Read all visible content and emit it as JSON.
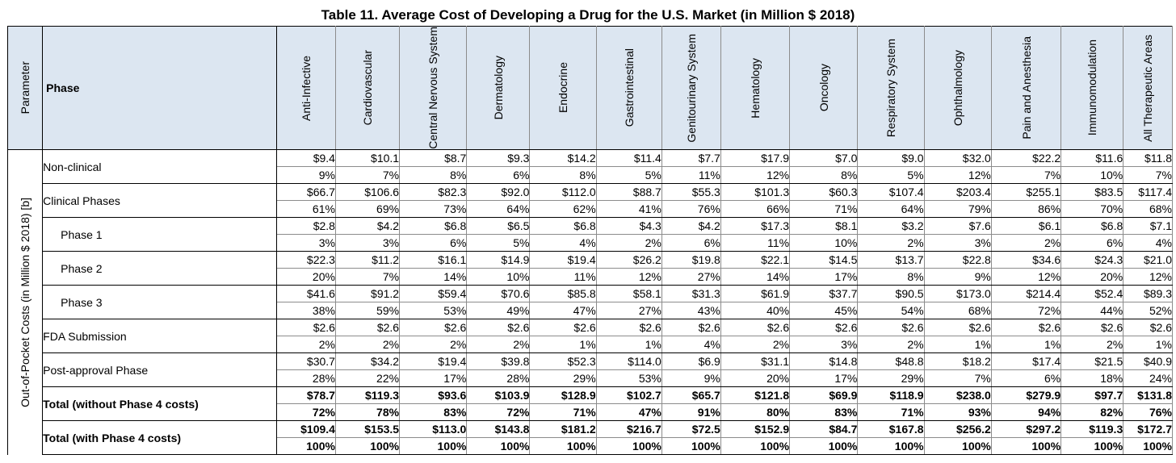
{
  "title": "Table 11.  Average Cost of Developing a Drug for the U.S. Market (in Million $ 2018)",
  "header": {
    "parameter": "Parameter",
    "phase": "Phase",
    "columns": [
      "Anti-Infective",
      "Cardiovascular",
      "Central Nervous System",
      "Dermatology",
      "Endocrine",
      "Gastrointestinal",
      "Genitourinary System",
      "Hematology",
      "Oncology",
      "Respiratory System",
      "Ophthalmology",
      "Pain and Anesthesia",
      "Immunomodulation",
      "All Therapeutic Areas"
    ]
  },
  "group_label": "Out-of-Pocket Costs (in Million $ 2018) [b]",
  "rows": [
    {
      "phase": "Non-clinical",
      "costs": [
        "$9.4",
        "$10.1",
        "$8.7",
        "$9.3",
        "$14.2",
        "$11.4",
        "$7.7",
        "$17.9",
        "$7.0",
        "$9.0",
        "$32.0",
        "$22.2",
        "$11.6",
        "$11.8"
      ],
      "pcts": [
        "9%",
        "7%",
        "8%",
        "6%",
        "8%",
        "5%",
        "11%",
        "12%",
        "8%",
        "5%",
        "12%",
        "7%",
        "10%",
        "7%"
      ]
    },
    {
      "phase": "Clinical Phases",
      "costs": [
        "$66.7",
        "$106.6",
        "$82.3",
        "$92.0",
        "$112.0",
        "$88.7",
        "$55.3",
        "$101.3",
        "$60.3",
        "$107.4",
        "$203.4",
        "$255.1",
        "$83.5",
        "$117.4"
      ],
      "pcts": [
        "61%",
        "69%",
        "73%",
        "64%",
        "62%",
        "41%",
        "76%",
        "66%",
        "71%",
        "64%",
        "79%",
        "86%",
        "70%",
        "68%"
      ]
    },
    {
      "phase": "Phase 1",
      "costs": [
        "$2.8",
        "$4.2",
        "$6.8",
        "$6.5",
        "$6.8",
        "$4.3",
        "$4.2",
        "$17.3",
        "$8.1",
        "$3.2",
        "$7.6",
        "$6.1",
        "$6.8",
        "$7.1"
      ],
      "pcts": [
        "3%",
        "3%",
        "6%",
        "5%",
        "4%",
        "2%",
        "6%",
        "11%",
        "10%",
        "2%",
        "3%",
        "2%",
        "6%",
        "4%"
      ]
    },
    {
      "phase": "Phase 2",
      "costs": [
        "$22.3",
        "$11.2",
        "$16.1",
        "$14.9",
        "$19.4",
        "$26.2",
        "$19.8",
        "$22.1",
        "$14.5",
        "$13.7",
        "$22.8",
        "$34.6",
        "$24.3",
        "$21.0"
      ],
      "pcts": [
        "20%",
        "7%",
        "14%",
        "10%",
        "11%",
        "12%",
        "27%",
        "14%",
        "17%",
        "8%",
        "9%",
        "12%",
        "20%",
        "12%"
      ]
    },
    {
      "phase": "Phase 3",
      "costs": [
        "$41.6",
        "$91.2",
        "$59.4",
        "$70.6",
        "$85.8",
        "$58.1",
        "$31.3",
        "$61.9",
        "$37.7",
        "$90.5",
        "$173.0",
        "$214.4",
        "$52.4",
        "$89.3"
      ],
      "pcts": [
        "38%",
        "59%",
        "53%",
        "49%",
        "47%",
        "27%",
        "43%",
        "40%",
        "45%",
        "54%",
        "68%",
        "72%",
        "44%",
        "52%"
      ]
    },
    {
      "phase": "FDA Submission",
      "costs": [
        "$2.6",
        "$2.6",
        "$2.6",
        "$2.6",
        "$2.6",
        "$2.6",
        "$2.6",
        "$2.6",
        "$2.6",
        "$2.6",
        "$2.6",
        "$2.6",
        "$2.6",
        "$2.6"
      ],
      "pcts": [
        "2%",
        "2%",
        "2%",
        "2%",
        "1%",
        "1%",
        "4%",
        "2%",
        "3%",
        "2%",
        "1%",
        "1%",
        "2%",
        "1%"
      ]
    },
    {
      "phase": "Post-approval Phase",
      "costs": [
        "$30.7",
        "$34.2",
        "$19.4",
        "$39.8",
        "$52.3",
        "$114.0",
        "$6.9",
        "$31.1",
        "$14.8",
        "$48.8",
        "$18.2",
        "$17.4",
        "$21.5",
        "$40.9"
      ],
      "pcts": [
        "28%",
        "22%",
        "17%",
        "28%",
        "29%",
        "53%",
        "9%",
        "20%",
        "17%",
        "29%",
        "7%",
        "6%",
        "18%",
        "24%"
      ]
    },
    {
      "phase": "Total (without Phase 4 costs)",
      "costs": [
        "$78.7",
        "$119.3",
        "$93.6",
        "$103.9",
        "$128.9",
        "$102.7",
        "$65.7",
        "$121.8",
        "$69.9",
        "$118.9",
        "$238.0",
        "$279.9",
        "$97.7",
        "$131.8"
      ],
      "pcts": [
        "72%",
        "78%",
        "83%",
        "72%",
        "71%",
        "47%",
        "91%",
        "80%",
        "83%",
        "71%",
        "93%",
        "94%",
        "82%",
        "76%"
      ]
    },
    {
      "phase": "Total (with Phase 4 costs)",
      "costs": [
        "$109.4",
        "$153.5",
        "$113.0",
        "$143.8",
        "$181.2",
        "$216.7",
        "$72.5",
        "$152.9",
        "$84.7",
        "$167.8",
        "$256.2",
        "$297.2",
        "$119.3",
        "$172.7"
      ],
      "pcts": [
        "100%",
        "100%",
        "100%",
        "100%",
        "100%",
        "100%",
        "100%",
        "100%",
        "100%",
        "100%",
        "100%",
        "100%",
        "100%",
        "100%"
      ]
    }
  ]
}
